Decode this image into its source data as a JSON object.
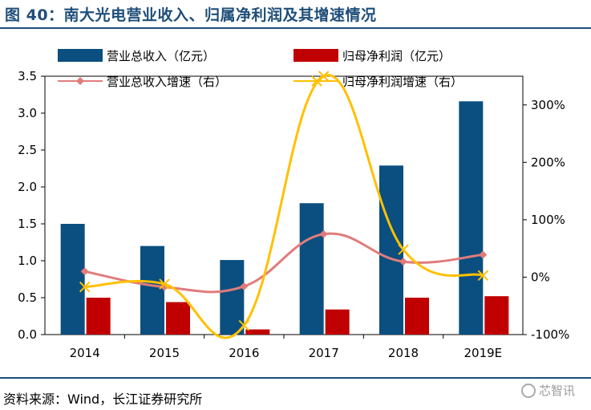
{
  "header": {
    "title": "图 40：南大光电营业收入、归属净利润及其增速情况"
  },
  "footer": {
    "source": "资料来源：Wind，长江证券研究所"
  },
  "watermark": {
    "text": "芯智讯"
  },
  "chart_data": {
    "type": "bar",
    "categories": [
      "2014",
      "2015",
      "2016",
      "2017",
      "2018",
      "2019E"
    ],
    "series": [
      {
        "name": "营业总收入（亿元）",
        "kind": "bar",
        "axis": "left",
        "color": "#0a4f7f",
        "values": [
          1.5,
          1.2,
          1.01,
          1.78,
          2.29,
          3.16
        ]
      },
      {
        "name": "归母净利润（亿元）",
        "kind": "bar",
        "axis": "left",
        "color": "#c00000",
        "values": [
          0.5,
          0.44,
          0.07,
          0.34,
          0.5,
          0.52
        ]
      },
      {
        "name": "营业总收入增速（右）",
        "kind": "line",
        "axis": "right",
        "color": "#e07c7c",
        "marker": "diamond",
        "values": [
          10,
          -17,
          -16,
          75,
          27,
          39
        ]
      },
      {
        "name": "归母净利润增速（右）",
        "kind": "line",
        "axis": "right",
        "color": "#ffc000",
        "marker": "x",
        "values": [
          -17,
          -12,
          -84,
          350,
          48,
          3
        ]
      }
    ],
    "left_axis": {
      "ylim": [
        0,
        3.5
      ],
      "ticks": [
        "0.0",
        "0.5",
        "1.0",
        "1.5",
        "2.0",
        "2.5",
        "3.0",
        "3.5"
      ]
    },
    "right_axis": {
      "ylim": [
        -100,
        350
      ],
      "ticks": [
        "-100%",
        "0%",
        "100%",
        "200%",
        "300%"
      ],
      "tick_values": [
        -100,
        0,
        100,
        200,
        300
      ]
    },
    "legend_position": "top"
  }
}
